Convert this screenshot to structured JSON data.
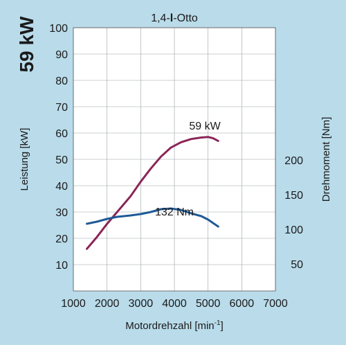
{
  "chart_data": {
    "type": "line",
    "title": "1,4-l-Otto",
    "title_parts": [
      "1,4-",
      "l",
      "-Otto"
    ],
    "side_label": "59 kW",
    "xlabel": "Motordrehzahl [min-1]",
    "xlabel_parts": [
      "Motordrehzahl [min",
      "-1",
      "]"
    ],
    "ylabel_left": "Leistung [kW]",
    "ylabel_right": "Drehmoment [Nm]",
    "xlim": [
      1000,
      7000
    ],
    "x_ticks": [
      "1000",
      "2000",
      "3000",
      "4000",
      "5000",
      "6000",
      "7000"
    ],
    "y_left_lim": [
      0,
      100
    ],
    "y_left_ticks": [
      "10",
      "20",
      "30",
      "40",
      "50",
      "60",
      "70",
      "80",
      "90",
      "100"
    ],
    "y_right_ticks": [
      "50",
      "100",
      "150",
      "200"
    ],
    "grid": true,
    "series": [
      {
        "name": "59 kW",
        "color": "#8b2457",
        "axis": "left",
        "x": [
          1400,
          1700,
          2000,
          2300,
          2700,
          3000,
          3300,
          3600,
          3900,
          4200,
          4500,
          4800,
          5000,
          5150,
          5300
        ],
        "y": [
          16,
          20.5,
          25.5,
          30,
          36,
          41.5,
          46.5,
          51,
          54.5,
          56.5,
          57.7,
          58.3,
          58.5,
          58,
          57
        ]
      },
      {
        "name": "132 Nm",
        "color": "#1f5a96",
        "axis": "right",
        "x": [
          1400,
          1700,
          2000,
          2300,
          2700,
          3000,
          3300,
          3600,
          3900,
          4200,
          4500,
          4800,
          5000,
          5150,
          5300
        ],
        "y": [
          108,
          111,
          115,
          118,
          120,
          122,
          125,
          129,
          130,
          128,
          123,
          119,
          114,
          109,
          104
        ]
      }
    ]
  }
}
